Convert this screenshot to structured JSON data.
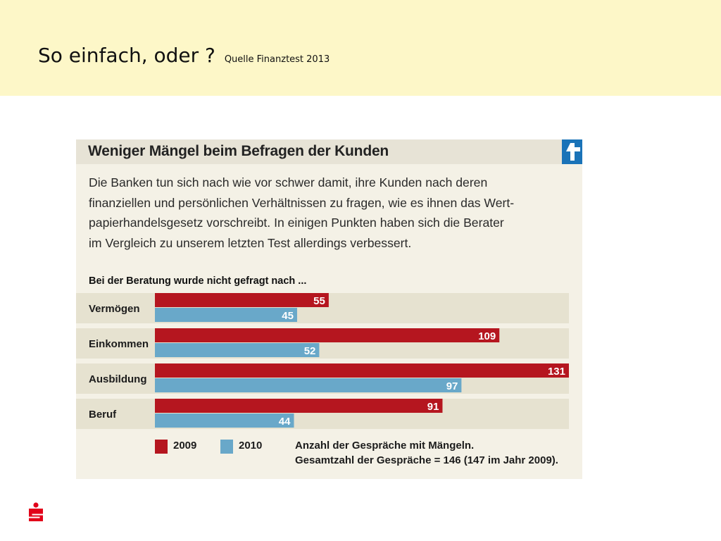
{
  "slide": {
    "title": "So einfach, oder ?",
    "source": "Quelle Finanztest 2013"
  },
  "panel": {
    "heading": "Weniger Mängel beim Befragen der Kunden",
    "intro_lines": [
      "Die Banken tun sich nach wie vor schwer damit, ihre Kunden nach deren",
      "finanziellen und persönlichen Verhältnissen zu fragen, wie es ihnen das Wert-",
      "papierhandelsgesetz vorschreibt. In einigen Punkten haben sich die Berater",
      "im Vergleich zu unserem letzten Test allerdings verbessert."
    ],
    "question": "Bei der Beratung wurde nicht gefragt nach ...",
    "logo_icon": "finanztest-cross-icon"
  },
  "chart_data": {
    "type": "bar",
    "orientation": "horizontal",
    "categories": [
      "Vermögen",
      "Einkommen",
      "Ausbildung",
      "Beruf"
    ],
    "series": [
      {
        "name": "2009",
        "color": "#b5161f",
        "values": [
          55,
          109,
          131,
          91
        ]
      },
      {
        "name": "2010",
        "color": "#69a8c9",
        "values": [
          45,
          52,
          97,
          44
        ]
      }
    ],
    "xlim": [
      0,
      131
    ],
    "data_labels": true,
    "legend_position": "bottom",
    "note_lines": [
      "Anzahl der Gespräche mit Mängeln.",
      "Gesamtzahl der Gespräche = 146 (147 im Jahr 2009)."
    ]
  },
  "footer": {
    "logo_icon": "sparkasse-logo-icon",
    "brand_color": "#e2001a"
  }
}
